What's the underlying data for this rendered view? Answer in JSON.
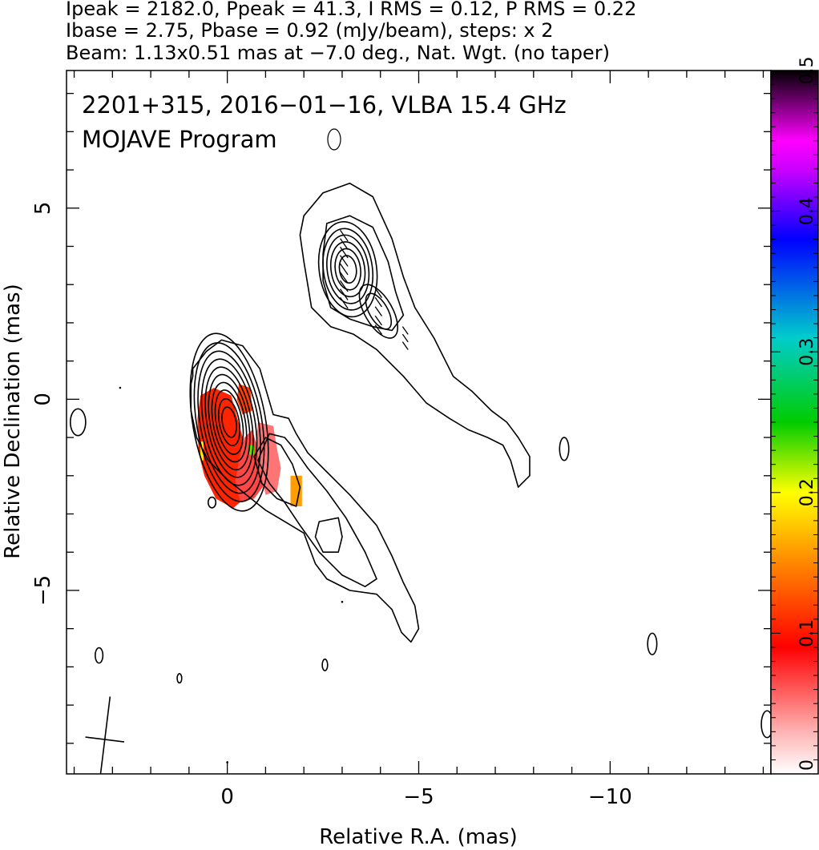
{
  "header": {
    "line1": "Ipeak = 2182.0, Ppeak = 41.3, I RMS = 0.12, P RMS = 0.22",
    "line2": "Ibase = 2.75, Pbase = 0.92 (mJy/beam), steps: x 2",
    "line3": "Beam: 1.13x0.51 mas at −7.0 deg., Nat. Wgt. (no taper)"
  },
  "chart_data": {
    "type": "contour-image",
    "title_line1": "2201+315, 2016−01−16, VLBA 15.4 GHz",
    "title_line2": "MOJAVE Program",
    "xlabel": "Relative R.A. (mas)",
    "ylabel": "Relative Declination (mas)",
    "xlim": [
      4.2,
      -14.2
    ],
    "ylim": [
      -9.8,
      8.6
    ],
    "x_ticks": [
      0,
      -5,
      -10
    ],
    "x_tick_labels": [
      "0",
      "−5",
      "−10"
    ],
    "y_ticks": [
      5,
      0,
      -5
    ],
    "y_tick_labels": [
      "5",
      "0",
      "−5"
    ],
    "colorbar": {
      "min": 0,
      "max": 0.5,
      "ticks": [
        0,
        0.1,
        0.2,
        0.3,
        0.4,
        0.5
      ],
      "tick_labels": [
        "0",
        "0.1",
        "0.2",
        "0.3",
        "0.4",
        "0.5"
      ],
      "colors": [
        "#ffffff",
        "#ff0000",
        "#ff8c00",
        "#ffff00",
        "#00cc00",
        "#00cccc",
        "#0000ff",
        "#cc00ff",
        "#ff00ff",
        "#000000"
      ]
    },
    "beam": {
      "major_mas": 1.13,
      "minor_mas": 0.51,
      "pa_deg": -7.0,
      "x": 3.2,
      "y": -8.9
    },
    "components": [
      {
        "name": "core",
        "x": -0.05,
        "y": -0.6,
        "level_semi_axes": [
          [
            0.95,
            2.35
          ],
          [
            0.85,
            2.1
          ],
          [
            0.76,
            1.88
          ],
          [
            0.67,
            1.67
          ],
          [
            0.58,
            1.46
          ],
          [
            0.5,
            1.26
          ],
          [
            0.42,
            1.05
          ],
          [
            0.34,
            0.85
          ],
          [
            0.26,
            0.62
          ],
          [
            0.18,
            0.4
          ]
        ],
        "angle_deg": -10
      },
      {
        "name": "northern-feature",
        "x": -3.15,
        "y": 3.4,
        "level_semi_axes": [
          [
            0.75,
            1.25
          ],
          [
            0.64,
            1.07
          ],
          [
            0.54,
            0.9
          ],
          [
            0.44,
            0.72
          ],
          [
            0.33,
            0.54
          ],
          [
            0.22,
            0.36
          ]
        ],
        "angle_deg": -8
      },
      {
        "name": "northern-secondary",
        "x": -3.95,
        "y": 2.3,
        "level_semi_axes": [
          [
            0.36,
            0.78
          ],
          [
            0.24,
            0.52
          ]
        ],
        "angle_deg": -30
      }
    ],
    "jet_outer": [
      [
        0.9,
        0.6
      ],
      [
        0.9,
        0.8
      ],
      [
        0.55,
        1.25
      ],
      [
        0.15,
        1.55
      ],
      [
        -0.4,
        1.4
      ],
      [
        -0.85,
        0.8
      ],
      [
        -1.2,
        -0.4
      ],
      [
        -1.6,
        -0.5
      ],
      [
        -1.8,
        -0.9
      ],
      [
        -2.1,
        -1.4
      ],
      [
        -2.6,
        -1.9
      ],
      [
        -3.2,
        -2.5
      ],
      [
        -3.9,
        -3.3
      ],
      [
        -4.3,
        -4.1
      ],
      [
        -4.6,
        -4.8
      ],
      [
        -4.9,
        -5.4
      ],
      [
        -5.0,
        -6.0
      ],
      [
        -4.8,
        -6.35
      ],
      [
        -4.55,
        -6.1
      ],
      [
        -4.3,
        -5.5
      ],
      [
        -3.9,
        -5.1
      ],
      [
        -3.2,
        -5.0
      ],
      [
        -2.6,
        -4.7
      ],
      [
        -2.3,
        -4.3
      ],
      [
        -2.0,
        -3.5
      ],
      [
        -1.5,
        -3.2
      ],
      [
        -1.0,
        -2.9
      ],
      [
        -0.5,
        -2.5
      ],
      [
        0,
        -2.1
      ],
      [
        0.5,
        -1.6
      ],
      [
        0.8,
        -1.0
      ],
      [
        0.95,
        -0.3
      ],
      [
        0.95,
        0.4
      ]
    ],
    "jet_mid": [
      [
        -1.1,
        -0.9
      ],
      [
        -1.5,
        -1.0
      ],
      [
        -1.75,
        -1.3
      ],
      [
        -2.1,
        -1.8
      ],
      [
        -2.6,
        -2.4
      ],
      [
        -3.1,
        -3.1
      ],
      [
        -3.6,
        -4.0
      ],
      [
        -3.9,
        -4.7
      ],
      [
        -3.6,
        -4.9
      ],
      [
        -3.0,
        -4.6
      ],
      [
        -2.4,
        -4.0
      ],
      [
        -1.9,
        -3.3
      ],
      [
        -1.5,
        -2.7
      ],
      [
        -1.1,
        -2.2
      ],
      [
        -0.8,
        -1.6
      ]
    ],
    "jet_inner": [
      [
        -1.0,
        -1.0
      ],
      [
        -1.4,
        -1.2
      ],
      [
        -1.7,
        -1.7
      ],
      [
        -1.9,
        -2.3
      ],
      [
        -1.8,
        -2.8
      ],
      [
        -1.3,
        -2.6
      ],
      [
        -0.9,
        -2.2
      ],
      [
        -0.7,
        -1.5
      ]
    ],
    "jet_hole": [
      [
        -2.4,
        -3.2
      ],
      [
        -2.9,
        -3.1
      ],
      [
        -3.0,
        -3.6
      ],
      [
        -2.9,
        -4.0
      ],
      [
        -2.5,
        -4.0
      ],
      [
        -2.3,
        -3.6
      ]
    ],
    "north_outer": [
      [
        -2.0,
        4.8
      ],
      [
        -2.5,
        5.4
      ],
      [
        -3.2,
        5.65
      ],
      [
        -3.8,
        5.3
      ],
      [
        -4.3,
        4.2
      ],
      [
        -4.6,
        3.2
      ],
      [
        -4.9,
        2.4
      ],
      [
        -5.4,
        1.6
      ],
      [
        -5.9,
        0.6
      ],
      [
        -6.4,
        0.2
      ],
      [
        -6.9,
        -0.3
      ],
      [
        -7.3,
        -0.6
      ],
      [
        -7.6,
        -1.0
      ],
      [
        -7.9,
        -1.5
      ],
      [
        -7.9,
        -2.0
      ],
      [
        -7.6,
        -2.3
      ],
      [
        -7.4,
        -1.6
      ],
      [
        -7.2,
        -1.2
      ],
      [
        -6.8,
        -1.0
      ],
      [
        -6.3,
        -0.8
      ],
      [
        -5.8,
        -0.5
      ],
      [
        -5.2,
        -0.1
      ],
      [
        -4.6,
        0.6
      ],
      [
        -3.9,
        1.3
      ],
      [
        -3.3,
        1.7
      ],
      [
        -2.7,
        1.9
      ],
      [
        -2.2,
        2.4
      ],
      [
        -2.1,
        3.0
      ],
      [
        -2.0,
        3.6
      ],
      [
        -1.9,
        4.3
      ]
    ],
    "north_inner": [
      [
        -2.5,
        3.8
      ],
      [
        -2.6,
        4.6
      ],
      [
        -3.2,
        4.8
      ],
      [
        -3.8,
        4.5
      ],
      [
        -4.2,
        3.6
      ],
      [
        -4.4,
        2.8
      ],
      [
        -4.6,
        2.2
      ],
      [
        -4.3,
        1.8
      ],
      [
        -3.8,
        1.9
      ],
      [
        -3.2,
        2.1
      ],
      [
        -2.7,
        2.4
      ],
      [
        -2.5,
        3.1
      ]
    ],
    "polarization_blobs": [
      {
        "frac": 0.07,
        "points": [
          [
            -0.4,
            -1.0
          ],
          [
            -0.1,
            0.1
          ],
          [
            0.35,
            0.3
          ],
          [
            0.7,
            0.1
          ],
          [
            0.78,
            -0.5
          ],
          [
            0.75,
            -1.4
          ],
          [
            0.6,
            -2.0
          ],
          [
            0.3,
            -2.6
          ],
          [
            -0.15,
            -2.85
          ],
          [
            -0.45,
            -2.6
          ],
          [
            -0.5,
            -1.8
          ]
        ]
      },
      {
        "frac": 0.04,
        "points": [
          [
            -0.65,
            -0.8
          ],
          [
            -0.8,
            -1.3
          ],
          [
            -1.05,
            -1.6
          ],
          [
            -1.0,
            -2.2
          ],
          [
            -0.7,
            -2.6
          ],
          [
            -0.35,
            -2.7
          ],
          [
            -0.2,
            -2.2
          ],
          [
            -0.3,
            -1.6
          ],
          [
            -0.45,
            -1.0
          ]
        ]
      },
      {
        "frac": 0.03,
        "points": [
          [
            -0.8,
            -0.6
          ],
          [
            -1.2,
            -0.7
          ],
          [
            -1.3,
            -1.3
          ],
          [
            -1.4,
            -1.8
          ],
          [
            -1.3,
            -2.4
          ],
          [
            -1.0,
            -2.5
          ],
          [
            -0.85,
            -1.8
          ],
          [
            -0.75,
            -1.2
          ]
        ]
      },
      {
        "frac": 0.08,
        "points": [
          [
            -0.3,
            0.4
          ],
          [
            -0.6,
            0.3
          ],
          [
            -0.65,
            -0.3
          ],
          [
            -0.4,
            -0.4
          ],
          [
            -0.25,
            0.0
          ]
        ]
      },
      {
        "frac": 0.12,
        "points": [
          [
            -1.65,
            -2.0
          ],
          [
            -1.95,
            -2.0
          ],
          [
            -1.95,
            -2.8
          ],
          [
            -1.65,
            -2.8
          ]
        ]
      },
      {
        "frac": 0.2,
        "points": [
          [
            -0.55,
            -1.2
          ],
          [
            -0.7,
            -1.2
          ],
          [
            -0.7,
            -1.45
          ],
          [
            -0.55,
            -1.45
          ]
        ]
      },
      {
        "frac": 0.16,
        "points": [
          [
            0.7,
            -1.1
          ],
          [
            0.62,
            -1.1
          ],
          [
            0.62,
            -1.6
          ],
          [
            0.7,
            -1.6
          ]
        ]
      }
    ],
    "pol_ticks": [
      {
        "x": -3.05,
        "y": 3.4,
        "angle": 55,
        "count": 9,
        "spacing": 0.22,
        "len": 0.35
      },
      {
        "x": -3.95,
        "y": 2.3,
        "angle": 55,
        "count": 5,
        "spacing": 0.24,
        "len": 0.3
      },
      {
        "x": -4.65,
        "y": 1.6,
        "angle": 55,
        "count": 3,
        "spacing": 0.2,
        "len": 0.25
      }
    ],
    "small_contours": [
      {
        "x": 3.9,
        "y": -0.6,
        "rx": 0.2,
        "ry": 0.35
      },
      {
        "x": 0.4,
        "y": -2.7,
        "rx": 0.1,
        "ry": 0.14
      },
      {
        "x": 3.35,
        "y": -6.7,
        "rx": 0.1,
        "ry": 0.2
      },
      {
        "x": 1.25,
        "y": -7.3,
        "rx": 0.06,
        "ry": 0.12
      },
      {
        "x": -2.55,
        "y": -6.95,
        "rx": 0.07,
        "ry": 0.15
      },
      {
        "x": -8.8,
        "y": -1.3,
        "rx": 0.12,
        "ry": 0.3
      },
      {
        "x": -11.1,
        "y": -6.4,
        "rx": 0.12,
        "ry": 0.28
      },
      {
        "x": -14.1,
        "y": -8.5,
        "rx": 0.15,
        "ry": 0.35
      }
    ],
    "dots": [
      [
        2.8,
        0.3
      ],
      [
        -3.0,
        -5.3
      ],
      [
        0.0,
        -9.5
      ]
    ]
  }
}
